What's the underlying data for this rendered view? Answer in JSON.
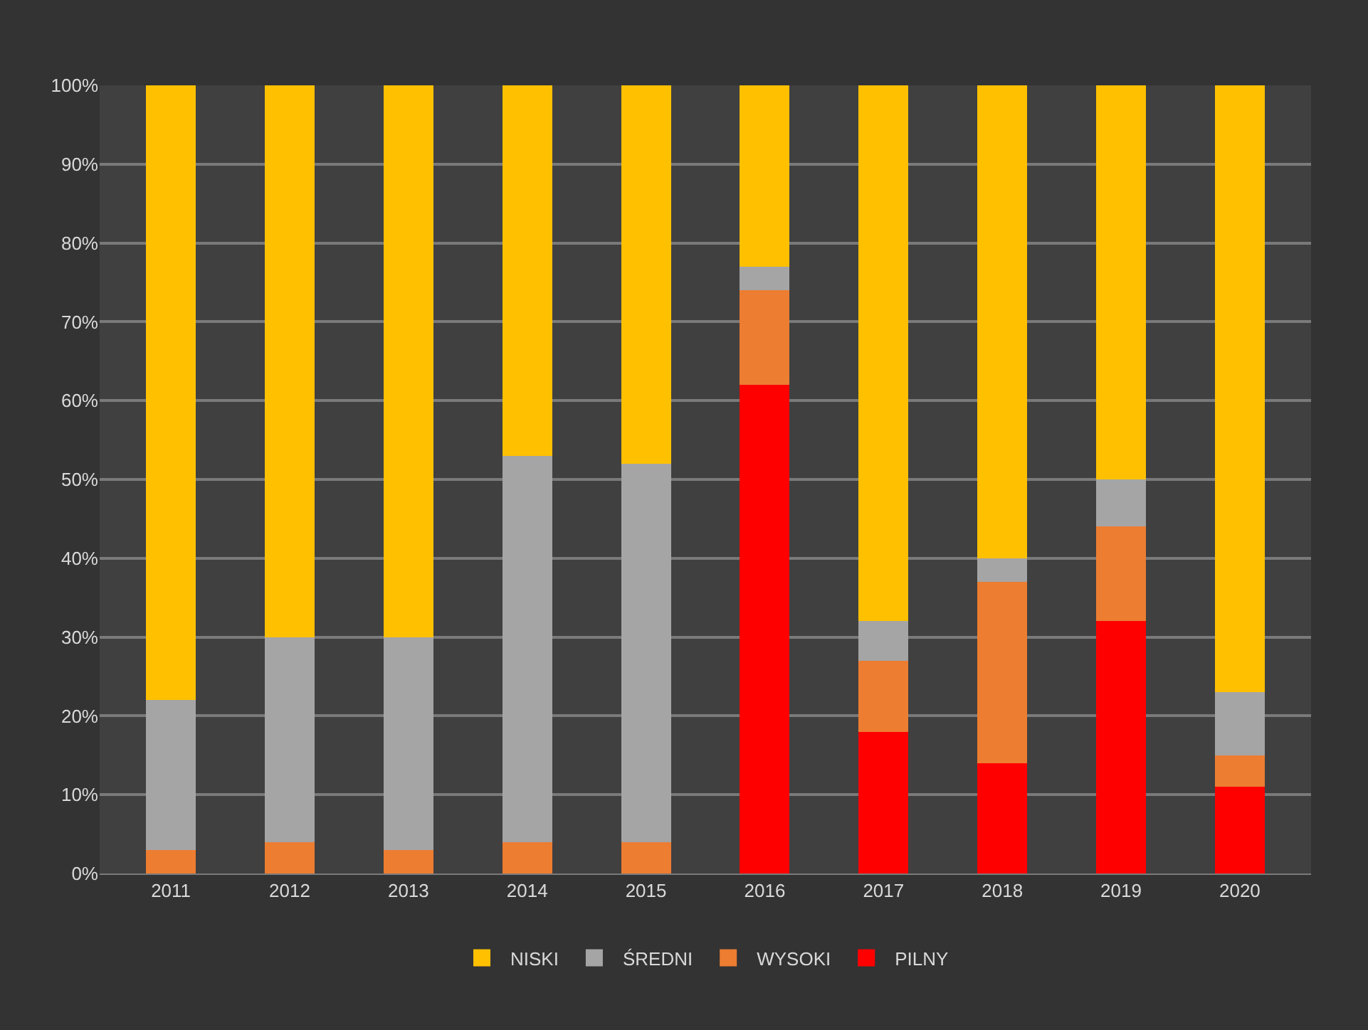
{
  "chart_data": {
    "type": "bar",
    "stacked": true,
    "categories": [
      "2011",
      "2012",
      "2013",
      "2014",
      "2015",
      "2016",
      "2017",
      "2018",
      "2019",
      "2020"
    ],
    "series": [
      {
        "name": "PILNY",
        "color": "#ff0000",
        "values": [
          0,
          0,
          0,
          0,
          0,
          62,
          18,
          14,
          32,
          11
        ]
      },
      {
        "name": "WYSOKI",
        "color": "#ed7d31",
        "values": [
          3,
          4,
          3,
          4,
          4,
          12,
          9,
          23,
          12,
          4
        ]
      },
      {
        "name": "ŚREDNI",
        "color": "#a5a5a5",
        "values": [
          19,
          26,
          27,
          49,
          48,
          3,
          5,
          3,
          6,
          8
        ]
      },
      {
        "name": "NISKI",
        "color": "#ffc000",
        "values": [
          78,
          70,
          70,
          47,
          48,
          23,
          68,
          60,
          50,
          77
        ]
      }
    ],
    "ylim": [
      0,
      100
    ],
    "yticks": [
      {
        "value": 0,
        "label": "0%"
      },
      {
        "value": 10,
        "label": "10%"
      },
      {
        "value": 20,
        "label": "20%"
      },
      {
        "value": 30,
        "label": "30%"
      },
      {
        "value": 40,
        "label": "40%"
      },
      {
        "value": 50,
        "label": "50%"
      },
      {
        "value": 60,
        "label": "60%"
      },
      {
        "value": 70,
        "label": "70%"
      },
      {
        "value": 80,
        "label": "80%"
      },
      {
        "value": 90,
        "label": "90%"
      },
      {
        "value": 100,
        "label": "100%"
      }
    ],
    "grid": "y",
    "legend": "bottom"
  }
}
